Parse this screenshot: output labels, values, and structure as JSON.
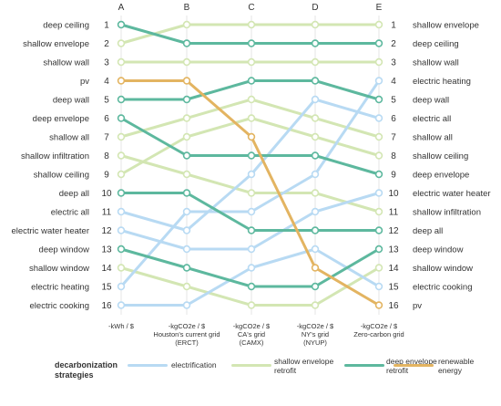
{
  "chart_data": {
    "type": "line",
    "columns": [
      "A",
      "B",
      "C",
      "D",
      "E"
    ],
    "column_axis_labels": [
      [
        "-kWh / $"
      ],
      [
        "-kgCO2e / $",
        "Houston's current grid",
        "(ERCT)"
      ],
      [
        "-kgCO2e / $",
        "CA's grid",
        "(CAMX)"
      ],
      [
        "-kgCO2e / $",
        "NY's grid",
        "(NYUP)"
      ],
      [
        "-kgCO2e / $",
        "Zero-carbon grid"
      ]
    ],
    "ranks": [
      1,
      2,
      3,
      4,
      5,
      6,
      7,
      8,
      9,
      10,
      11,
      12,
      13,
      14,
      15,
      16
    ],
    "left_labels": [
      "deep ceiling",
      "shallow envelope",
      "shallow wall",
      "pv",
      "deep wall",
      "deep envelope",
      "shallow all",
      "shallow infiltration",
      "shallow ceiling",
      "deep all",
      "electric all",
      "electric water heater",
      "deep window",
      "shallow window",
      "electric heating",
      "electric cooking"
    ],
    "right_labels": [
      "shallow envelope",
      "deep ceiling",
      "shallow wall",
      "electric heating",
      "deep wall",
      "electric all",
      "shallow all",
      "shallow ceiling",
      "deep envelope",
      "electric water heater",
      "shallow infiltration",
      "deep all",
      "deep window",
      "shallow window",
      "electric cooking",
      "pv"
    ],
    "series": [
      {
        "name": "deep ceiling",
        "category": "deep",
        "values": [
          1,
          2,
          2,
          2,
          2
        ]
      },
      {
        "name": "shallow envelope",
        "category": "shallow",
        "values": [
          2,
          1,
          1,
          1,
          1
        ]
      },
      {
        "name": "shallow wall",
        "category": "shallow",
        "values": [
          3,
          3,
          3,
          3,
          3
        ]
      },
      {
        "name": "pv",
        "category": "renewable",
        "values": [
          4,
          4,
          7,
          14,
          16
        ]
      },
      {
        "name": "deep wall",
        "category": "deep",
        "values": [
          5,
          5,
          4,
          4,
          5
        ]
      },
      {
        "name": "deep envelope",
        "category": "deep",
        "values": [
          6,
          8,
          8,
          8,
          9
        ]
      },
      {
        "name": "shallow all",
        "category": "shallow",
        "values": [
          7,
          6,
          5,
          6,
          7
        ]
      },
      {
        "name": "shallow infiltration",
        "category": "shallow",
        "values": [
          8,
          9,
          10,
          10,
          11
        ]
      },
      {
        "name": "shallow ceiling",
        "category": "shallow",
        "values": [
          9,
          7,
          6,
          7,
          8
        ]
      },
      {
        "name": "deep all",
        "category": "deep",
        "values": [
          10,
          10,
          12,
          12,
          12
        ]
      },
      {
        "name": "electric all",
        "category": "electrification",
        "values": [
          11,
          12,
          9,
          5,
          6
        ]
      },
      {
        "name": "electric water heater",
        "category": "electrification",
        "values": [
          12,
          13,
          13,
          11,
          10
        ]
      },
      {
        "name": "deep window",
        "category": "deep",
        "values": [
          13,
          14,
          15,
          15,
          13
        ]
      },
      {
        "name": "shallow window",
        "category": "shallow",
        "values": [
          14,
          15,
          16,
          16,
          14
        ]
      },
      {
        "name": "electric heating",
        "category": "electrification",
        "values": [
          15,
          11,
          11,
          9,
          4
        ]
      },
      {
        "name": "electric cooking",
        "category": "electrification",
        "values": [
          16,
          16,
          14,
          13,
          15
        ]
      }
    ],
    "colors": {
      "electrification": "#b8daf3",
      "shallow": "#d3e6b3",
      "deep": "#5db89e",
      "renewable": "#e3b461"
    }
  },
  "legend": {
    "title_line1": "decarbonization",
    "title_line2": "strategies",
    "items": [
      {
        "key": "electrification",
        "line1": "electrification",
        "line2": ""
      },
      {
        "key": "shallow",
        "line1": "shallow envelope",
        "line2": "retrofit"
      },
      {
        "key": "deep",
        "line1": "deep envelope",
        "line2": "retrofit"
      },
      {
        "key": "renewable",
        "line1": "renewable",
        "line2": "energy"
      }
    ]
  }
}
